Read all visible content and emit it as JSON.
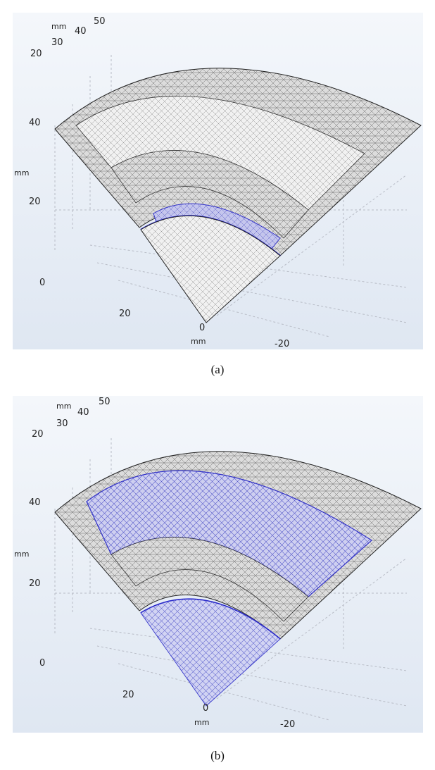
{
  "figure": {
    "panels": [
      {
        "caption": "(a)",
        "axes": {
          "top_ticks": [
            "50",
            "40",
            "30",
            "20"
          ],
          "top_unit": "mm",
          "vertical_ticks": [
            "40",
            "20",
            "0"
          ],
          "vertical_unit": "mm",
          "front_ticks": [
            "20",
            "0",
            "-20"
          ],
          "front_unit": "mm"
        },
        "highlight": "inner-arc",
        "colors": {
          "background": "#e8eef6",
          "mesh": "#d8d8d8",
          "highlight": "#3030d0"
        }
      },
      {
        "caption": "(b)",
        "axes": {
          "top_ticks": [
            "50",
            "40",
            "30",
            "20"
          ],
          "top_unit": "mm",
          "vertical_ticks": [
            "40",
            "20",
            "0"
          ],
          "vertical_unit": "mm",
          "front_ticks": [
            "20",
            "0",
            "-20"
          ],
          "front_unit": "mm"
        },
        "highlight": "middle-shell",
        "colors": {
          "background": "#e8eef6",
          "mesh": "#d8d8d8",
          "highlight": "#3030d0"
        }
      }
    ]
  }
}
